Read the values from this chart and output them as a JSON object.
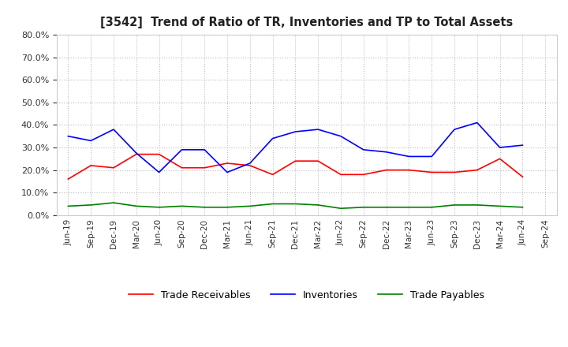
{
  "title": "[3542]  Trend of Ratio of TR, Inventories and TP to Total Assets",
  "x_labels": [
    "Jun-19",
    "Sep-19",
    "Dec-19",
    "Mar-20",
    "Jun-20",
    "Sep-20",
    "Dec-20",
    "Mar-21",
    "Jun-21",
    "Sep-21",
    "Dec-21",
    "Mar-22",
    "Jun-22",
    "Sep-22",
    "Dec-22",
    "Mar-23",
    "Jun-23",
    "Sep-23",
    "Dec-23",
    "Mar-24",
    "Jun-24",
    "Sep-24"
  ],
  "trade_receivables": [
    16.0,
    22.0,
    21.0,
    27.0,
    27.0,
    21.0,
    21.0,
    23.0,
    22.0,
    18.0,
    24.0,
    24.0,
    18.0,
    18.0,
    20.0,
    20.0,
    19.0,
    19.0,
    20.0,
    25.0,
    17.0,
    null
  ],
  "inventories": [
    35.0,
    33.0,
    38.0,
    27.5,
    19.0,
    29.0,
    29.0,
    19.0,
    23.0,
    34.0,
    37.0,
    38.0,
    35.0,
    29.0,
    28.0,
    26.0,
    26.0,
    38.0,
    41.0,
    30.0,
    31.0,
    null
  ],
  "trade_payables": [
    4.0,
    4.5,
    5.5,
    4.0,
    3.5,
    4.0,
    3.5,
    3.5,
    4.0,
    5.0,
    5.0,
    4.5,
    3.0,
    3.5,
    3.5,
    3.5,
    3.5,
    4.5,
    4.5,
    4.0,
    3.5,
    null
  ],
  "ylim": [
    0.0,
    80.0
  ],
  "yticks": [
    0.0,
    10.0,
    20.0,
    30.0,
    40.0,
    50.0,
    60.0,
    70.0,
    80.0
  ],
  "color_tr": "#FF0000",
  "color_inv": "#0000FF",
  "color_tp": "#008000",
  "background_color": "#FFFFFF",
  "grid_color": "#AAAAAA",
  "legend_labels": [
    "Trade Receivables",
    "Inventories",
    "Trade Payables"
  ]
}
